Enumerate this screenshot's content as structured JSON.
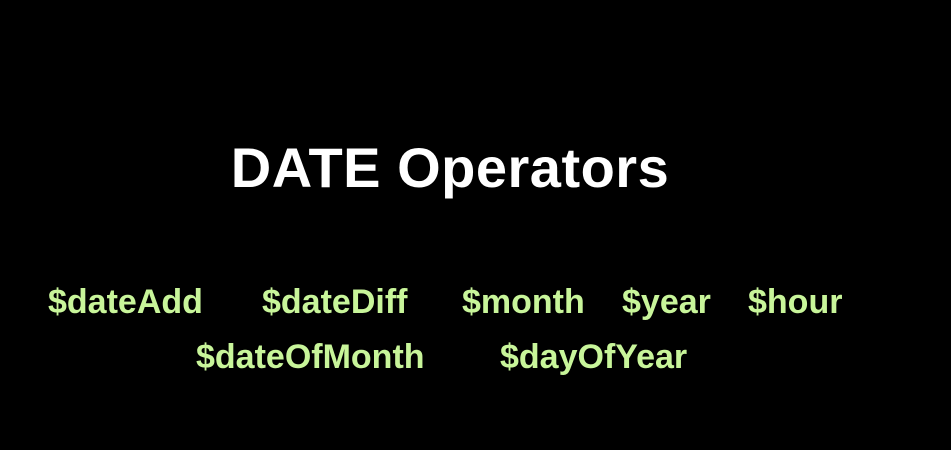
{
  "title": "DATE Operators",
  "operators": {
    "row1": [
      "$dateAdd",
      "$dateDiff",
      "$month",
      "$year",
      "$hour"
    ],
    "row2": [
      "$dateOfMonth",
      "$dayOfYear"
    ]
  },
  "colors": {
    "background": "#000000",
    "title": "#ffffff",
    "operators": "#c8f59a"
  }
}
